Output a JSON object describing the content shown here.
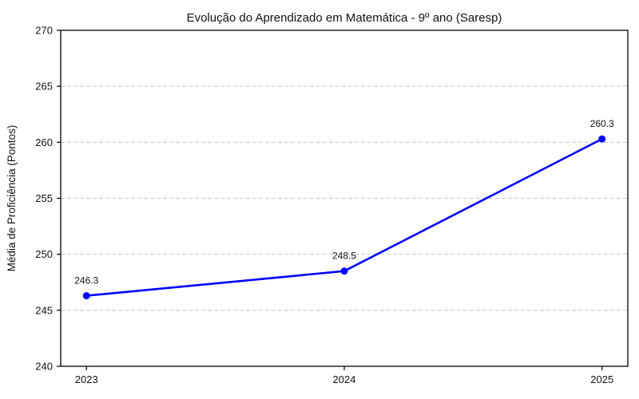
{
  "chart_data": {
    "type": "line",
    "title": "Evolução do Aprendizado em Matemática - 9º ano (Saresp)",
    "xlabel": "",
    "ylabel": "Média de Proficiência (Pontos)",
    "categories": [
      "2023",
      "2024",
      "2025"
    ],
    "series": [
      {
        "name": "Média de Proficiência",
        "values": [
          246.3,
          248.5,
          260.3
        ],
        "point_labels": [
          "246.3",
          "248.5",
          "260.3"
        ],
        "color": "#0000ff",
        "marker": "circle"
      }
    ],
    "ylim": [
      240,
      270
    ],
    "yticks": [
      240,
      245,
      250,
      255,
      260,
      265,
      270
    ],
    "grid": "horizontal-dashed",
    "grid_color": "#c8c8c8",
    "axis_color": "#000000",
    "background": "#ffffff",
    "legend": "none"
  }
}
